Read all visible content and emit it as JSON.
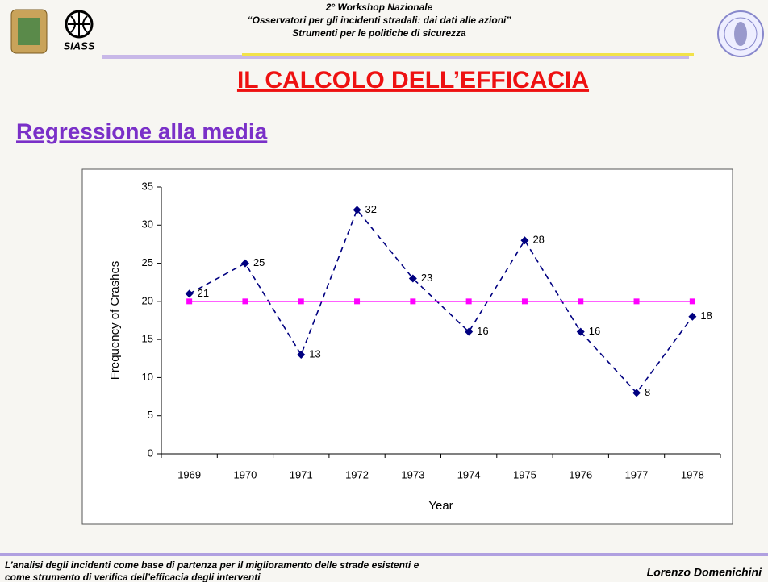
{
  "header": {
    "lines": [
      "2° Workshop Nazionale",
      "“Osservatori per gli incidenti stradali: dai dati alle azioni”",
      "Strumenti per le politiche di sicurezza"
    ],
    "logo_text": "SIASS"
  },
  "title": "IL CALCOLO DELL’EFFICACIA",
  "subtitle": "Regressione alla media",
  "chart_data": {
    "type": "line",
    "categories": [
      "1969",
      "1970",
      "1971",
      "1972",
      "1973",
      "1974",
      "1975",
      "1976",
      "1977",
      "1978"
    ],
    "series": [
      {
        "color": "#000080",
        "dashed": true,
        "marker": "diamond",
        "data_labels": true,
        "values": [
          21,
          25,
          13,
          32,
          23,
          16,
          28,
          16,
          8,
          18
        ]
      },
      {
        "color": "#ff00ff",
        "dashed": false,
        "marker": "square",
        "data_labels": false,
        "values": [
          20,
          20,
          20,
          20,
          20,
          20,
          20,
          20,
          20,
          20
        ]
      }
    ],
    "x_label": "Year",
    "y_label": "Frequency of Crashes",
    "ylim": [
      0,
      35
    ],
    "yticks": [
      0,
      5,
      10,
      15,
      20,
      25,
      30,
      35
    ],
    "grid": false
  },
  "footer": {
    "lines": [
      "L’analisi degli incidenti come base di partenza per il miglioramento delle strade esistenti e",
      "come strumento di verifica dell’efficacia degli interventi"
    ],
    "author": "Lorenzo Domenichini"
  }
}
